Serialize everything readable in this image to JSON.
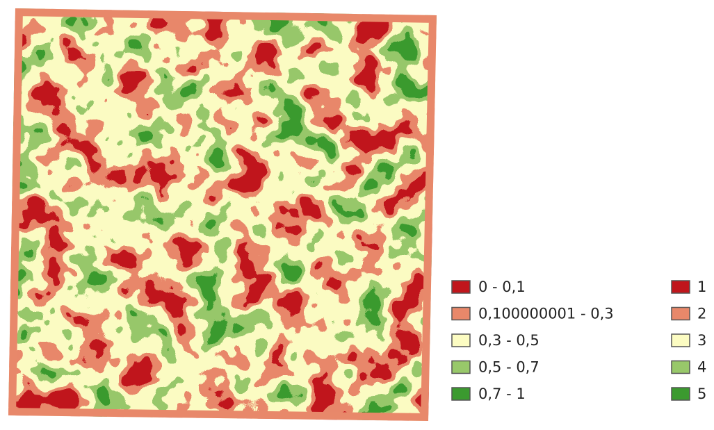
{
  "legend": {
    "items": [
      {
        "label": "0 - 0,1",
        "color": "#c0161c"
      },
      {
        "label": "0,100000001 - 0,3",
        "color": "#e8886a"
      },
      {
        "label": "0,3 - 0,5",
        "color": "#fcfcc2"
      },
      {
        "label": "0,5 - 0,7",
        "color": "#98c86a"
      },
      {
        "label": "0,7 - 1",
        "color": "#3b9a2f"
      }
    ]
  },
  "legend_classes": {
    "items": [
      {
        "label": "1",
        "color": "#c0161c"
      },
      {
        "label": "2",
        "color": "#e8886a"
      },
      {
        "label": "3",
        "color": "#fcfcc2"
      },
      {
        "label": "4",
        "color": "#98c86a"
      },
      {
        "label": "5",
        "color": "#3b9a2f"
      }
    ]
  }
}
